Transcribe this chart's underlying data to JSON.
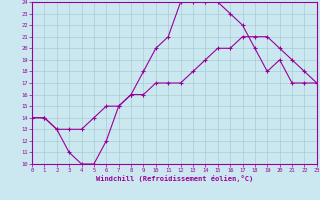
{
  "xlabel": "Windchill (Refroidissement éolien,°C)",
  "xlim": [
    0,
    23
  ],
  "ylim": [
    10,
    24
  ],
  "xticks": [
    0,
    1,
    2,
    3,
    4,
    5,
    6,
    7,
    8,
    9,
    10,
    11,
    12,
    13,
    14,
    15,
    16,
    17,
    18,
    19,
    20,
    21,
    22,
    23
  ],
  "yticks": [
    10,
    11,
    12,
    13,
    14,
    15,
    16,
    17,
    18,
    19,
    20,
    21,
    22,
    23,
    24
  ],
  "bg_color": "#cbe8f0",
  "grid_color": "#a8ccd4",
  "line_color": "#990099",
  "line1_x": [
    0,
    1,
    2,
    3,
    4,
    5,
    6,
    7,
    8,
    9,
    10,
    11,
    12,
    13,
    14,
    15,
    16,
    17,
    18,
    19,
    20,
    21,
    22,
    23
  ],
  "line1_y": [
    14,
    14,
    13,
    11,
    10,
    10,
    12,
    15,
    16,
    18,
    20,
    21,
    24,
    24,
    24,
    24,
    23,
    22,
    20,
    18,
    19,
    17,
    17,
    17
  ],
  "line2_x": [
    0,
    1,
    2,
    3,
    4,
    5,
    6,
    7,
    8,
    9,
    10,
    11,
    12,
    13,
    14,
    15,
    16,
    17,
    18,
    19,
    20,
    21,
    22,
    23
  ],
  "line2_y": [
    14,
    14,
    13,
    13,
    13,
    14,
    15,
    15,
    16,
    16,
    17,
    17,
    17,
    18,
    19,
    20,
    20,
    21,
    21,
    21,
    20,
    19,
    18,
    17
  ]
}
